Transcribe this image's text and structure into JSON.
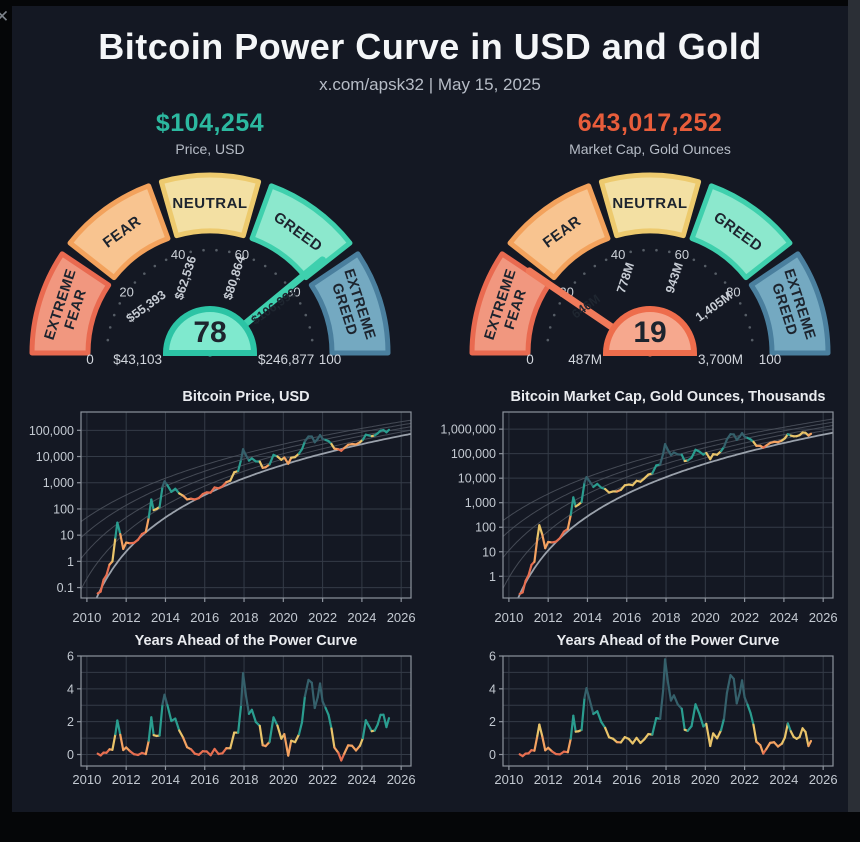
{
  "header": {
    "title": "Bitcoin Power Curve in USD and Gold",
    "subtitle": "x.com/apsk32 | May 15, 2025"
  },
  "window": {
    "close_icon": "✕"
  },
  "theme": {
    "panel_bg": "#141823",
    "outer_bg": "#050608",
    "right_strip": "#2b2f36",
    "title_color": "#f4f6f8",
    "muted_text": "#b6bcc6",
    "grid": "#343b47",
    "spine": "#8d939d",
    "tick_text": "#c3c9d1",
    "power_curve_main": "#9ba2ac",
    "power_curve_faint": "#4e545e"
  },
  "color_scale": {
    "thresholds": [
      0.25,
      0.75,
      1.5,
      2.9
    ],
    "colors": [
      "#e76f51",
      "#f4a261",
      "#e9c46a",
      "#2a9d8f",
      "#35606b"
    ]
  },
  "gauge_segments": [
    {
      "label": "EXTREME FEAR",
      "fill": "#f1977f",
      "stroke": "#e96a50"
    },
    {
      "label": "FEAR",
      "fill": "#f8c490",
      "stroke": "#f3a25c"
    },
    {
      "label": "NEUTRAL",
      "fill": "#f3e0a3",
      "stroke": "#edca6e"
    },
    {
      "label": "GREED",
      "fill": "#8ce8cd",
      "stroke": "#3fd0ad"
    },
    {
      "label": "EXTREME GREED",
      "fill": "#74a9c1",
      "stroke": "#4a7f9e"
    }
  ],
  "gauges": [
    {
      "value": "$104,254",
      "value_color": "#2cb9a0",
      "caption": "Price, USD",
      "needle": 78,
      "needle_color": "#3ed0ae",
      "bubble_fill": "#7fe9ce",
      "bubble_stroke": "#2cc4a5",
      "bubble_value": "78",
      "tick_labels": [
        "0",
        "20",
        "40",
        "60",
        "80",
        "100"
      ],
      "price_labels": [
        "$43,103",
        "$55,393",
        "$62,536",
        "$80,864",
        "$106,993",
        "$246,877"
      ]
    },
    {
      "value": "643,017,252",
      "value_color": "#e85d3b",
      "caption": "Market Cap, Gold Ounces",
      "needle": 19,
      "needle_color": "#f07a5a",
      "bubble_fill": "#f6a88e",
      "bubble_stroke": "#ee6d4c",
      "bubble_value": "19",
      "tick_labels": [
        "0",
        "20",
        "40",
        "60",
        "80",
        "100"
      ],
      "price_labels": [
        "487M",
        "646M",
        "778M",
        "943M",
        "1,405M",
        "3,700M"
      ]
    }
  ],
  "chart_data": [
    {
      "type": "line",
      "title": "Bitcoin Price, USD",
      "yscale": "log",
      "x_range": [
        2009.7,
        2026.5
      ],
      "x_ticks": [
        2010,
        2012,
        2014,
        2016,
        2018,
        2020,
        2022,
        2024,
        2026
      ],
      "y_range": [
        0.04,
        500000
      ],
      "y_ticks": [
        {
          "v": 0.1,
          "label": "0.1"
        },
        {
          "v": 1,
          "label": "1"
        },
        {
          "v": 10,
          "label": "10"
        },
        {
          "v": 100,
          "label": "100"
        },
        {
          "v": 1000,
          "label": "1,000"
        },
        {
          "v": 10000,
          "label": "10,000"
        },
        {
          "v": 100000,
          "label": "100,000"
        }
      ],
      "power_curve": {
        "A": 0.0038,
        "k": 5.86,
        "ahead_offsets": [
          1,
          2,
          3,
          4
        ]
      },
      "color_by": "years_ahead_of_power_curve",
      "x": [
        2010.55,
        2010.7,
        2010.85,
        2011.0,
        2011.15,
        2011.3,
        2011.45,
        2011.55,
        2011.7,
        2011.85,
        2012.0,
        2012.2,
        2012.4,
        2012.6,
        2012.8,
        2013.0,
        2013.15,
        2013.28,
        2013.4,
        2013.55,
        2013.7,
        2013.85,
        2013.95,
        2014.1,
        2014.3,
        2014.5,
        2014.7,
        2014.9,
        2015.1,
        2015.3,
        2015.5,
        2015.7,
        2015.9,
        2016.1,
        2016.3,
        2016.5,
        2016.7,
        2016.9,
        2017.1,
        2017.3,
        2017.5,
        2017.7,
        2017.85,
        2017.95,
        2018.1,
        2018.25,
        2018.4,
        2018.6,
        2018.8,
        2018.95,
        2019.1,
        2019.3,
        2019.5,
        2019.7,
        2019.9,
        2020.05,
        2020.25,
        2020.4,
        2020.6,
        2020.8,
        2020.95,
        2021.1,
        2021.28,
        2021.45,
        2021.6,
        2021.75,
        2021.87,
        2022.0,
        2022.15,
        2022.3,
        2022.45,
        2022.6,
        2022.8,
        2022.95,
        2023.1,
        2023.3,
        2023.5,
        2023.7,
        2023.9,
        2024.05,
        2024.2,
        2024.35,
        2024.5,
        2024.65,
        2024.8,
        2024.95,
        2025.1,
        2025.25,
        2025.38
      ],
      "values": [
        0.06,
        0.07,
        0.2,
        0.3,
        0.75,
        1.0,
        8,
        30,
        11,
        3,
        5.2,
        4.9,
        5.1,
        6.6,
        11,
        13.3,
        47,
        230,
        90,
        100,
        120,
        700,
        1130,
        800,
        450,
        590,
        390,
        320,
        230,
        245,
        230,
        260,
        370,
        430,
        420,
        660,
        610,
        730,
        1050,
        1200,
        2500,
        2800,
        7500,
        19000,
        11000,
        7000,
        8500,
        6500,
        6400,
        3700,
        3900,
        5000,
        11500,
        10000,
        7500,
        9200,
        5300,
        9000,
        9500,
        13000,
        19000,
        38000,
        58000,
        58000,
        35000,
        47000,
        66000,
        47000,
        43000,
        39000,
        30000,
        20000,
        19000,
        16600,
        21000,
        28000,
        30000,
        29000,
        35000,
        44000,
        68000,
        64000,
        60000,
        64000,
        76000,
        97000,
        102000,
        84000,
        104254
      ]
    },
    {
      "type": "line",
      "title": "Bitcoin Market Cap, Gold Ounces, Thousands",
      "yscale": "log",
      "x_range": [
        2009.7,
        2026.5
      ],
      "x_ticks": [
        2010,
        2012,
        2014,
        2016,
        2018,
        2020,
        2022,
        2024,
        2026
      ],
      "y_range": [
        0.13,
        5000000
      ],
      "y_ticks": [
        {
          "v": 1,
          "label": "1"
        },
        {
          "v": 10,
          "label": "10"
        },
        {
          "v": 100,
          "label": "100"
        },
        {
          "v": 1000,
          "label": "1,000"
        },
        {
          "v": 10000,
          "label": "10,000"
        },
        {
          "v": 100000,
          "label": "100,000"
        },
        {
          "v": 1000000,
          "label": "1,000,000"
        }
      ],
      "power_curve": {
        "A": 0.0115,
        "k": 6.27,
        "ahead_offsets": [
          1,
          2,
          3,
          4
        ]
      },
      "color_by": "years_ahead_of_power_curve",
      "x": [
        2010.55,
        2010.7,
        2010.85,
        2011.0,
        2011.15,
        2011.3,
        2011.45,
        2011.55,
        2011.7,
        2011.85,
        2012.0,
        2012.2,
        2012.4,
        2012.6,
        2012.8,
        2013.0,
        2013.15,
        2013.28,
        2013.4,
        2013.55,
        2013.7,
        2013.85,
        2013.95,
        2014.1,
        2014.3,
        2014.5,
        2014.7,
        2014.9,
        2015.1,
        2015.3,
        2015.5,
        2015.7,
        2015.9,
        2016.1,
        2016.3,
        2016.5,
        2016.7,
        2016.9,
        2017.1,
        2017.3,
        2017.5,
        2017.7,
        2017.85,
        2017.95,
        2018.1,
        2018.25,
        2018.4,
        2018.6,
        2018.8,
        2018.95,
        2019.1,
        2019.3,
        2019.5,
        2019.7,
        2019.9,
        2020.05,
        2020.25,
        2020.4,
        2020.6,
        2020.8,
        2020.95,
        2021.1,
        2021.28,
        2021.45,
        2021.6,
        2021.75,
        2021.87,
        2022.0,
        2022.15,
        2022.3,
        2022.45,
        2022.6,
        2022.8,
        2022.95,
        2023.1,
        2023.3,
        2023.5,
        2023.7,
        2023.9,
        2024.05,
        2024.2,
        2024.35,
        2024.5,
        2024.65,
        2024.8,
        2024.95,
        2025.1,
        2025.25,
        2025.38
      ],
      "values": [
        0.19,
        0.22,
        0.65,
        1.1,
        2.9,
        3.9,
        35,
        120,
        50,
        14,
        25,
        24,
        26,
        36,
        66,
        85,
        320,
        1650,
        700,
        840,
        1070,
        6660,
        11000,
        7570,
        4400,
        5860,
        4120,
        3600,
        2600,
        2880,
        2860,
        3340,
        5120,
        5500,
        5180,
        7800,
        7200,
        9840,
        14000,
        15650,
        33060,
        36200,
        96800,
        244800,
        139400,
        88300,
        111100,
        93200,
        90700,
        50300,
        52500,
        68200,
        144400,
        120600,
        91600,
        106700,
        59500,
        95200,
        90600,
        126600,
        187500,
        384100,
        621700,
        609300,
        364600,
        493600,
        687400,
        490800,
        438100,
        382000,
        303700,
        208500,
        207900,
        177100,
        213100,
        273200,
        301500,
        293800,
        343000,
        421900,
        617000,
        546800,
        507300,
        515100,
        566700,
        727500,
        709700,
        546700,
        643017
      ]
    },
    {
      "type": "line",
      "title": "Years Ahead of the Power Curve",
      "yscale": "linear",
      "derived_from": 0,
      "derivation": "years_ahead = (value / A)^(1/k) - (year - 2009)",
      "x_range": [
        2009.7,
        2026.5
      ],
      "x_ticks": [
        2010,
        2012,
        2014,
        2016,
        2018,
        2020,
        2022,
        2024,
        2026
      ],
      "y_range": [
        -0.7,
        6
      ],
      "y_grid": [
        0,
        1,
        2,
        3,
        4,
        5,
        6
      ],
      "y_tick_labels": [
        {
          "v": 0,
          "label": "0"
        },
        {
          "v": 2,
          "label": "2"
        },
        {
          "v": 4,
          "label": "4"
        },
        {
          "v": 6,
          "label": "6"
        }
      ]
    },
    {
      "type": "line",
      "title": "Years Ahead of the Power Curve",
      "yscale": "linear",
      "derived_from": 1,
      "derivation": "years_ahead = (value / A)^(1/k) - (year - 2009)",
      "x_range": [
        2009.7,
        2026.5
      ],
      "x_ticks": [
        2010,
        2012,
        2014,
        2016,
        2018,
        2020,
        2022,
        2024,
        2026
      ],
      "y_range": [
        -0.7,
        6
      ],
      "y_grid": [
        0,
        1,
        2,
        3,
        4,
        5,
        6
      ],
      "y_tick_labels": [
        {
          "v": 0,
          "label": "0"
        },
        {
          "v": 2,
          "label": "2"
        },
        {
          "v": 4,
          "label": "4"
        },
        {
          "v": 6,
          "label": "6"
        }
      ]
    }
  ]
}
